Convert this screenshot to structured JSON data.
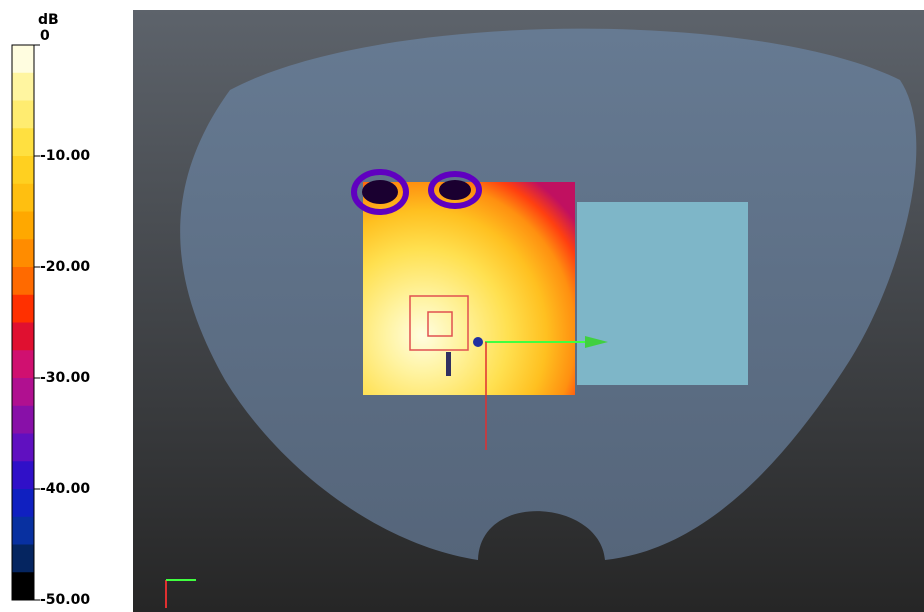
{
  "colorbar": {
    "unit": "dB",
    "ticks": [
      "0",
      "-10.00",
      "-20.00",
      "-30.00",
      "-40.00",
      "-50.00"
    ]
  }
}
